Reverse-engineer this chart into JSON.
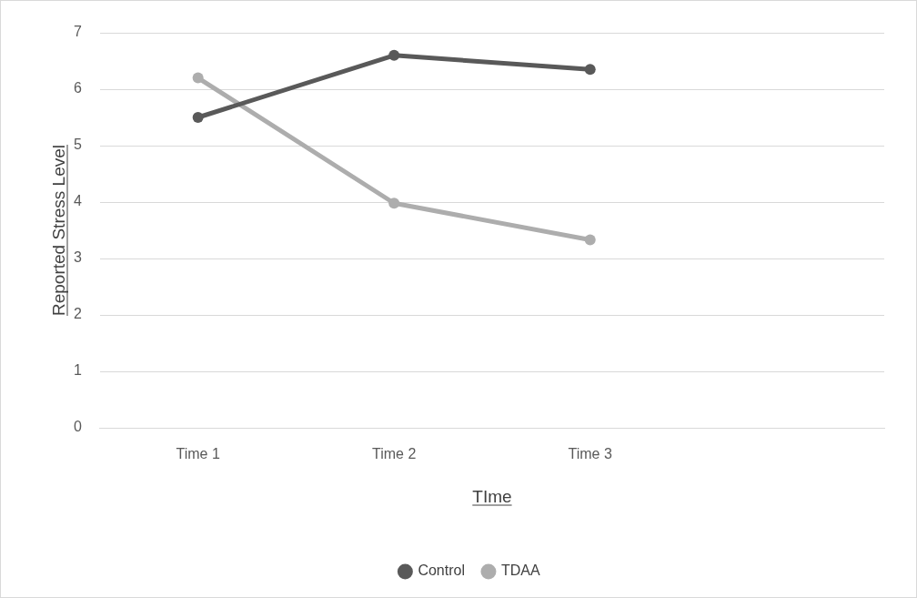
{
  "chart_data": {
    "type": "line",
    "xlabel": "TIme",
    "ylabel": "Reported Stress Level",
    "categories": [
      "Time 1",
      "Time 2",
      "Time 3",
      null
    ],
    "series": [
      {
        "name": "Control",
        "color": "#595959",
        "values": [
          5.5,
          6.6,
          6.35,
          null
        ]
      },
      {
        "name": "TDAA",
        "color": "#adadad",
        "values": [
          6.2,
          3.98,
          3.33,
          null
        ]
      }
    ],
    "ylim": [
      0,
      7
    ],
    "yticks": [
      0,
      1,
      2,
      3,
      4,
      5,
      6,
      7
    ],
    "grid": "y",
    "legend": "bottom",
    "marker": "circle",
    "line_style": "solid"
  }
}
